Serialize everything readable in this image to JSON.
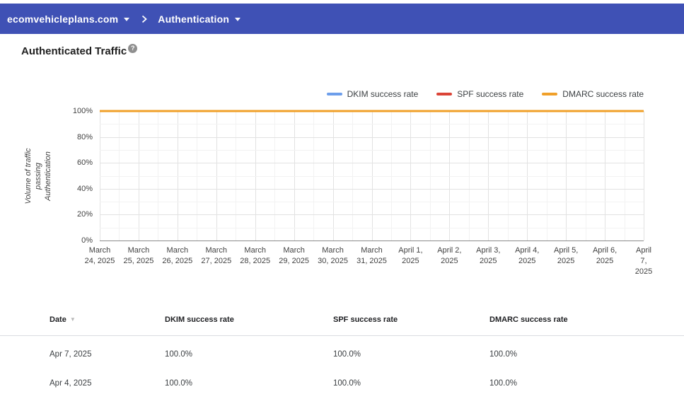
{
  "nav": {
    "bg": "#3F51B5",
    "domain": "ecomvehicleplans.com",
    "section": "Authentication"
  },
  "page": {
    "title": "Authenticated Traffic",
    "help_icon": "?"
  },
  "chart_data": {
    "type": "line",
    "title": "Authenticated Traffic",
    "x": [
      "March 24, 2025",
      "March 25, 2025",
      "March 26, 2025",
      "March 27, 2025",
      "March 28, 2025",
      "March 29, 2025",
      "March 30, 2025",
      "March 31, 2025",
      "April 1, 2025",
      "April 2, 2025",
      "April 3, 2025",
      "April 4, 2025",
      "April 5, 2025",
      "April 6, 2025",
      "April 7, 2025"
    ],
    "x_tick_labels": [
      "March\n24, 2025",
      "March\n25, 2025",
      "March\n26, 2025",
      "March\n27, 2025",
      "March\n28, 2025",
      "March\n29, 2025",
      "March\n30, 2025",
      "March\n31, 2025",
      "April 1,\n2025",
      "April 2,\n2025",
      "April 3,\n2025",
      "April 4,\n2025",
      "April 5,\n2025",
      "April 6,\n2025",
      "April 7,\n2025"
    ],
    "series": [
      {
        "name": "DKIM success rate",
        "color": "#6D9EEB",
        "values": [
          100,
          100,
          100,
          100,
          100,
          100,
          100,
          100,
          100,
          100,
          100,
          100,
          100,
          100,
          100
        ]
      },
      {
        "name": "SPF success rate",
        "color": "#DB4437",
        "values": [
          100,
          100,
          100,
          100,
          100,
          100,
          100,
          100,
          100,
          100,
          100,
          100,
          100,
          100,
          100
        ]
      },
      {
        "name": "DMARC success rate",
        "color": "#F0A029",
        "values": [
          100,
          100,
          100,
          100,
          100,
          100,
          100,
          100,
          100,
          100,
          100,
          100,
          100,
          100,
          100
        ]
      }
    ],
    "ylabel": "Volume of traffic passing\nAuthentication",
    "y_ticks": [
      "100%",
      "80%",
      "60%",
      "40%",
      "20%",
      "0%"
    ],
    "ylim": [
      0,
      100
    ],
    "grid": true,
    "legend_position": "top-right"
  },
  "table": {
    "columns": [
      "Date",
      "DKIM success rate",
      "SPF success rate",
      "DMARC success rate"
    ],
    "sort_column": "Date",
    "sort_indicator": "▼",
    "rows": [
      {
        "date": "Apr 7, 2025",
        "dkim": "100.0%",
        "spf": "100.0%",
        "dmarc": "100.0%"
      },
      {
        "date": "Apr 4, 2025",
        "dkim": "100.0%",
        "spf": "100.0%",
        "dmarc": "100.0%"
      }
    ]
  }
}
